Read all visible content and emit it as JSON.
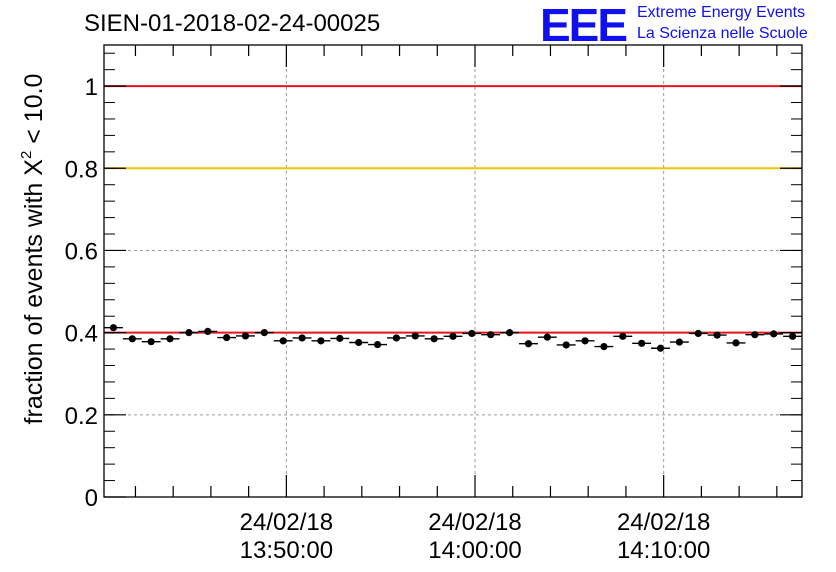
{
  "header": {
    "title": "SIEN-01-2018-02-24-00025",
    "logo_mark": "EEE",
    "logo_line1": "Extreme Energy Events",
    "logo_line2": "La Scienza nelle Scuole"
  },
  "colors": {
    "red_line": "#e8141c",
    "yellow_line": "#f5c400",
    "markers": "#000000",
    "grid": "#9a9a9a",
    "logo": "#1010ee"
  },
  "chart_data": {
    "type": "scatter",
    "title": "SIEN-01-2018-02-24-00025",
    "ylabel": "fraction of events with X² < 10.0",
    "ylabel_main": "fraction of events with X",
    "ylabel_sup": "2",
    "ylabel_tail": " < 10.0",
    "xlabel": "",
    "ylim": [
      0,
      1.1
    ],
    "y_ticks": [
      0,
      0.2,
      0.4,
      0.6,
      0.8,
      1
    ],
    "y_tick_labels": [
      "0",
      "0.2",
      "0.4",
      "0.6",
      "0.8",
      "1"
    ],
    "x_range_minutes": [
      "13:40:20",
      "14:17:20"
    ],
    "x_ticks": [
      {
        "date": "24/02/18",
        "time": "13:50:00"
      },
      {
        "date": "24/02/18",
        "time": "14:00:00"
      },
      {
        "date": "24/02/18",
        "time": "14:10:00"
      }
    ],
    "grid": true,
    "reference_lines": [
      {
        "y": 1.0,
        "color": "#e8141c"
      },
      {
        "y": 0.8,
        "color": "#f5c400"
      },
      {
        "y": 0.4,
        "color": "#e8141c"
      }
    ],
    "series": [
      {
        "x": [
          "13:40:50",
          "13:41:50",
          "13:42:50",
          "13:43:50",
          "13:44:50",
          "13:45:50",
          "13:46:50",
          "13:47:50",
          "13:48:50",
          "13:49:50",
          "13:50:50",
          "13:51:50",
          "13:52:50",
          "13:53:50",
          "13:54:50",
          "13:55:50",
          "13:56:50",
          "13:57:50",
          "13:58:50",
          "13:59:50",
          "14:00:50",
          "14:01:50",
          "14:02:50",
          "14:03:50",
          "14:04:50",
          "14:05:50",
          "14:06:50",
          "14:07:50",
          "14:08:50",
          "14:09:50",
          "14:10:50",
          "14:11:50",
          "14:12:50",
          "14:13:50",
          "14:14:50",
          "14:15:50",
          "14:16:50"
        ],
        "values": [
          0.412,
          0.385,
          0.378,
          0.385,
          0.4,
          0.403,
          0.388,
          0.392,
          0.4,
          0.38,
          0.387,
          0.38,
          0.386,
          0.376,
          0.371,
          0.387,
          0.392,
          0.385,
          0.391,
          0.398,
          0.395,
          0.4,
          0.373,
          0.389,
          0.37,
          0.38,
          0.366,
          0.391,
          0.374,
          0.362,
          0.377,
          0.398,
          0.394,
          0.375,
          0.395,
          0.397,
          0.391
        ],
        "errors": [
          0.006,
          0.006,
          0.006,
          0.006,
          0.006,
          0.006,
          0.006,
          0.006,
          0.006,
          0.006,
          0.006,
          0.006,
          0.006,
          0.006,
          0.006,
          0.006,
          0.006,
          0.006,
          0.006,
          0.006,
          0.006,
          0.006,
          0.006,
          0.006,
          0.006,
          0.006,
          0.006,
          0.006,
          0.006,
          0.006,
          0.006,
          0.006,
          0.006,
          0.006,
          0.006,
          0.006,
          0.006
        ]
      }
    ]
  }
}
